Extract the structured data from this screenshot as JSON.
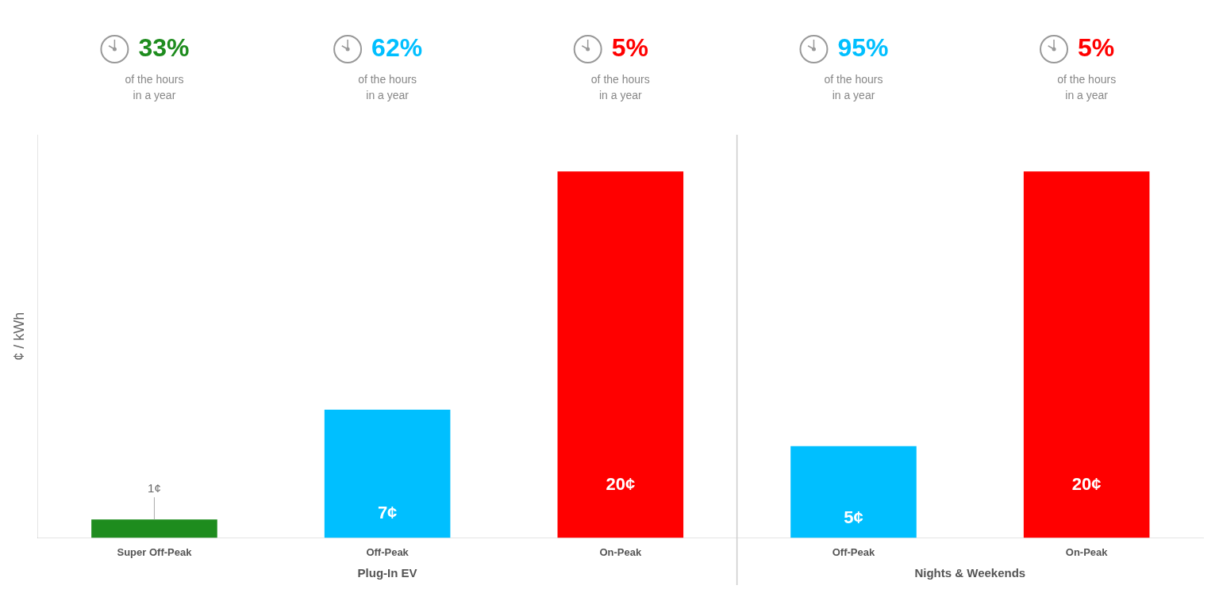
{
  "chart_data": {
    "type": "bar",
    "categories": [
      "Super Off-Peak",
      "Off-Peak",
      "On-Peak",
      "Off-Peak",
      "On-Peak"
    ],
    "groups": [
      "Plug-In EV",
      "Plug-In EV",
      "Plug-In EV",
      "Nights & Weekends",
      "Nights & Weekends"
    ],
    "values": [
      1,
      7,
      20,
      5,
      20
    ],
    "value_labels": [
      "1¢",
      "7¢",
      "20¢",
      "5¢",
      "20¢"
    ],
    "data_labels": true,
    "colors": [
      "#1e8c1e",
      "#00bfff",
      "#ff0000",
      "#00bfff",
      "#ff0000"
    ],
    "ylabel": "¢ / kWh",
    "ylim": [
      0,
      22
    ],
    "grid": false,
    "tick_labels": "x",
    "hour_shares": [
      33,
      62,
      5,
      95,
      5
    ],
    "hour_share_labels": [
      "33%",
      "62%",
      "5%",
      "95%",
      "5%"
    ],
    "hour_share_note": [
      "of the hours",
      "in a year"
    ]
  }
}
